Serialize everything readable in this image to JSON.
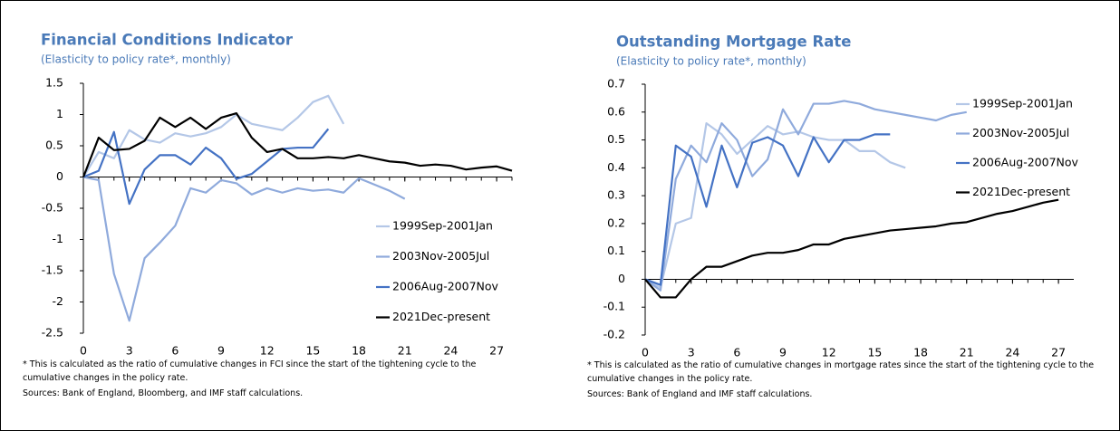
{
  "chart_data": [
    {
      "type": "line",
      "title": "Financial Conditions Indicator",
      "subtitle": "(Elasticity to policy rate*, monthly)",
      "x": [
        0,
        1,
        2,
        3,
        4,
        5,
        6,
        7,
        8,
        9,
        10,
        11,
        12,
        13,
        14,
        15,
        16,
        17,
        18,
        19,
        20,
        21,
        22,
        23,
        24,
        25,
        26,
        27,
        28
      ],
      "xlim": [
        0,
        28
      ],
      "xticks": [
        0,
        3,
        6,
        9,
        12,
        15,
        18,
        21,
        24,
        27
      ],
      "ylim": [
        -2.5,
        1.5
      ],
      "yticks": [
        -2.5,
        -2,
        -1.5,
        -1,
        -0.5,
        0,
        0.5,
        1,
        1.5
      ],
      "legend": "lower right",
      "series": [
        {
          "name": "1999Sep-2001Jan",
          "color": "#b4c7e7",
          "values": [
            0,
            0.4,
            0.3,
            0.75,
            0.6,
            0.55,
            0.7,
            0.65,
            0.7,
            0.8,
            1.0,
            0.85,
            0.8,
            0.75,
            0.95,
            1.2,
            1.3,
            0.85,
            null,
            null,
            null,
            null,
            null,
            null,
            null,
            null,
            null,
            null,
            null
          ]
        },
        {
          "name": "2003Nov-2005Jul",
          "color": "#8faadc",
          "values": [
            0,
            -0.05,
            -1.55,
            -2.3,
            -1.3,
            -1.05,
            -0.78,
            -0.18,
            -0.25,
            -0.05,
            -0.1,
            -0.28,
            -0.18,
            -0.25,
            -0.18,
            -0.22,
            -0.2,
            -0.25,
            -0.02,
            -0.12,
            -0.22,
            -0.35,
            null,
            null,
            null,
            null,
            null,
            null,
            null
          ]
        },
        {
          "name": "2006Aug-2007Nov",
          "color": "#4472c4",
          "values": [
            0,
            0.1,
            0.72,
            -0.43,
            0.12,
            0.35,
            0.35,
            0.2,
            0.47,
            0.3,
            -0.03,
            0.05,
            0.25,
            0.45,
            0.47,
            0.47,
            0.77,
            null,
            null,
            null,
            null,
            null,
            null,
            null,
            null,
            null,
            null,
            null,
            null
          ]
        },
        {
          "name": "2021Dec-present",
          "color": "#000000",
          "values": [
            0,
            0.63,
            0.43,
            0.45,
            0.58,
            0.95,
            0.8,
            0.95,
            0.77,
            0.95,
            1.02,
            0.63,
            0.4,
            0.45,
            0.3,
            0.3,
            0.32,
            0.3,
            0.35,
            0.3,
            0.25,
            0.23,
            0.18,
            0.2,
            0.18,
            0.12,
            0.15,
            0.17,
            0.1
          ]
        }
      ],
      "footnote": "* This is calculated as the ratio of cumulative changes in FCI since the start of the tightening cycle to the cumulative changes in the policy rate.",
      "source": "Sources: Bank of England, Bloomberg, and IMF staff calculations."
    },
    {
      "type": "line",
      "title": "Outstanding Mortgage Rate",
      "subtitle": "(Elasticity to policy rate*, monthly)",
      "x": [
        0,
        1,
        2,
        3,
        4,
        5,
        6,
        7,
        8,
        9,
        10,
        11,
        12,
        13,
        14,
        15,
        16,
        17,
        18,
        19,
        20,
        21,
        22,
        23,
        24,
        25,
        26,
        27
      ],
      "xlim": [
        0,
        28
      ],
      "xticks": [
        0,
        3,
        6,
        9,
        12,
        15,
        18,
        21,
        24,
        27
      ],
      "ylim": [
        -0.2,
        0.7
      ],
      "yticks": [
        -0.2,
        -0.1,
        0,
        0.1,
        0.2,
        0.3,
        0.4,
        0.5,
        0.6,
        0.7
      ],
      "legend": "upper right",
      "series": [
        {
          "name": "1999Sep-2001Jan",
          "color": "#b4c7e7",
          "values": [
            0,
            -0.03,
            0.2,
            0.22,
            0.56,
            0.52,
            0.45,
            0.5,
            0.55,
            0.52,
            0.53,
            0.51,
            0.5,
            0.5,
            0.46,
            0.46,
            0.42,
            0.4,
            null,
            null,
            null,
            null,
            null,
            null,
            null,
            null,
            null,
            null
          ]
        },
        {
          "name": "2003Nov-2005Jul",
          "color": "#8faadc",
          "values": [
            0,
            -0.04,
            0.36,
            0.48,
            0.42,
            0.56,
            0.5,
            0.37,
            0.43,
            0.61,
            0.52,
            0.63,
            0.63,
            0.64,
            0.63,
            0.61,
            0.6,
            0.59,
            0.58,
            0.57,
            0.59,
            0.6,
            null,
            null,
            null,
            null,
            null,
            null
          ]
        },
        {
          "name": "2006Aug-2007Nov",
          "color": "#4472c4",
          "values": [
            0,
            -0.02,
            0.48,
            0.44,
            0.26,
            0.48,
            0.33,
            0.49,
            0.51,
            0.48,
            0.37,
            0.51,
            0.42,
            0.5,
            0.5,
            0.52,
            0.52,
            null,
            null,
            null,
            null,
            null,
            null,
            null,
            null,
            null,
            null,
            null
          ]
        },
        {
          "name": "2021Dec-present",
          "color": "#000000",
          "values": [
            0,
            -0.065,
            -0.065,
            0,
            0.045,
            0.045,
            0.065,
            0.085,
            0.095,
            0.095,
            0.105,
            0.125,
            0.125,
            0.145,
            0.155,
            0.165,
            0.175,
            0.18,
            0.185,
            0.19,
            0.2,
            0.205,
            0.22,
            0.235,
            0.245,
            0.26,
            0.275,
            0.285
          ]
        }
      ],
      "footnote": "* This is calculated as the ratio of cumulative changes in mortgage rates since the start of the tightening cycle to the cumulative changes in the policy rate.",
      "source": "Sources: Bank of England and IMF staff calculations."
    }
  ]
}
